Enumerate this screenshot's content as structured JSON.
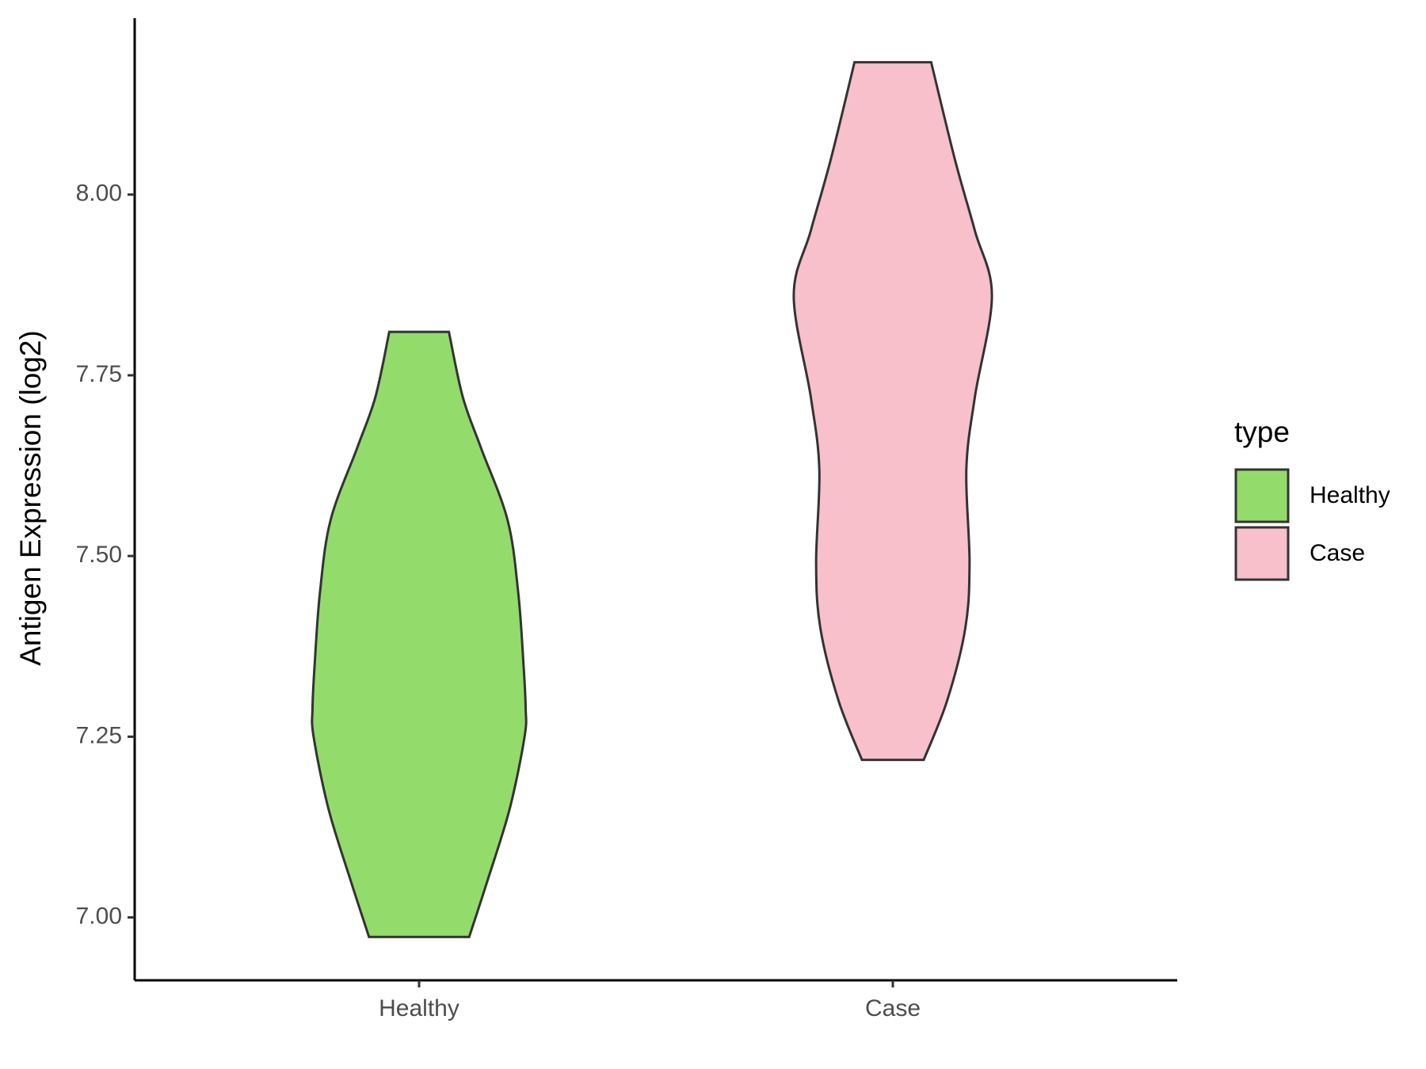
{
  "chart_data": {
    "type": "violin",
    "y_label": "Antigen Expression (log2)",
    "legend_title": "type",
    "categories": [
      "Healthy",
      "Case"
    ],
    "ylim": [
      6.913,
      8.244
    ],
    "yticks": [
      {
        "value": 7,
        "label": "7.00"
      },
      7.25,
      {
        "value": 7.5,
        "label": "7.50"
      },
      7.75,
      {
        "value": 8,
        "label": "8.00"
      }
    ],
    "series": [
      {
        "name": "Healthy",
        "color": "#93dc6b",
        "y": [
          6.973,
          7.05,
          7.15,
          7.25,
          7.29,
          7.35,
          7.45,
          7.55,
          7.65,
          7.72,
          7.81
        ],
        "density": [
          0.47,
          0.64,
          0.85,
          0.99,
          1.0,
          0.98,
          0.93,
          0.83,
          0.58,
          0.41,
          0.28
        ]
      },
      {
        "name": "Case",
        "color": "#f7c0cb",
        "y": [
          7.218,
          7.3,
          7.4,
          7.49,
          7.62,
          7.72,
          7.86,
          7.95,
          8.05,
          8.183
        ],
        "density": [
          0.29,
          0.51,
          0.68,
          0.72,
          0.69,
          0.77,
          0.93,
          0.77,
          0.58,
          0.36
        ]
      }
    ]
  }
}
